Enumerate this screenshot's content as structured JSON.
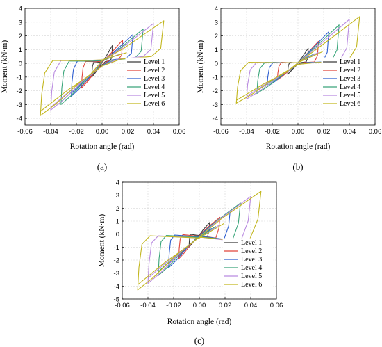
{
  "chart_data": [
    {
      "type": "line",
      "panel_label": "(a)",
      "xlabel": "Rotation angle (rad)",
      "ylabel": "Moment (kN·m)",
      "xlim": [
        -0.06,
        0.06
      ],
      "ylim": [
        -4.5,
        4
      ],
      "xticks": [
        "-0.06",
        "-0.04",
        "-0.02",
        "0.00",
        "0.02",
        "0.04",
        "0.06"
      ],
      "yticks": [
        "-4",
        "-3",
        "-2",
        "-1",
        "0",
        "1",
        "2",
        "3",
        "4"
      ],
      "grid": true,
      "legend_position": "lower-right",
      "series": [
        {
          "name": "Level 1",
          "color": "#3a3a3a",
          "amp_x": 0.008,
          "pos_peak": 1.3,
          "neg_peak": -1.0,
          "neg_end": -1.0,
          "pos_end": 0.2,
          "shape": "pinched"
        },
        {
          "name": "Level 2",
          "color": "#e0443a",
          "amp_x": 0.016,
          "pos_peak": 1.7,
          "neg_peak": -1.8,
          "neg_end": -1.7,
          "pos_end": 0.3,
          "shape": "pinched"
        },
        {
          "name": "Level 3",
          "color": "#2f5fd0",
          "amp_x": 0.024,
          "pos_peak": 2.1,
          "neg_peak": -2.4,
          "neg_end": -2.2,
          "pos_end": 0.4,
          "shape": "pinched"
        },
        {
          "name": "Level 4",
          "color": "#3aa57a",
          "amp_x": 0.032,
          "pos_peak": 2.5,
          "neg_peak": -3.0,
          "neg_end": -2.8,
          "pos_end": 0.4,
          "shape": "pinched"
        },
        {
          "name": "Level 5",
          "color": "#b98ae0",
          "amp_x": 0.04,
          "pos_peak": 2.9,
          "neg_peak": -3.4,
          "neg_end": -3.2,
          "pos_end": 0.5,
          "shape": "pinched"
        },
        {
          "name": "Level 6",
          "color": "#c2b61e",
          "amp_x": 0.048,
          "pos_peak": 3.1,
          "neg_peak": -3.8,
          "neg_end": -3.5,
          "pos_end": 0.5,
          "shape": "pinched"
        }
      ]
    },
    {
      "type": "line",
      "panel_label": "(b)",
      "xlabel": "Rotation angle (rad)",
      "ylabel": "Moment (kN·m)",
      "xlim": [
        -0.06,
        0.06
      ],
      "ylim": [
        -4.5,
        4
      ],
      "xticks": [
        "-0.06",
        "-0.04",
        "-0.02",
        "0.00",
        "0.02",
        "0.04",
        "0.06"
      ],
      "yticks": [
        "-4",
        "-3",
        "-2",
        "-1",
        "0",
        "1",
        "2",
        "3",
        "4"
      ],
      "grid": true,
      "legend_position": "lower-right",
      "series": [
        {
          "name": "Level 1",
          "color": "#3a3a3a",
          "amp_x": 0.008,
          "pos_peak": 1.1,
          "neg_peak": -0.8,
          "neg_end": -0.8,
          "pos_end": 0.1,
          "shape": "pinched"
        },
        {
          "name": "Level 2",
          "color": "#e0443a",
          "amp_x": 0.016,
          "pos_peak": 1.6,
          "neg_peak": -1.2,
          "neg_end": -1.1,
          "pos_end": 0.1,
          "shape": "pinched"
        },
        {
          "name": "Level 3",
          "color": "#2f5fd0",
          "amp_x": 0.024,
          "pos_peak": 2.3,
          "neg_peak": -1.7,
          "neg_end": -1.6,
          "pos_end": 0.1,
          "shape": "pinched"
        },
        {
          "name": "Level 4",
          "color": "#3aa57a",
          "amp_x": 0.032,
          "pos_peak": 2.8,
          "neg_peak": -2.2,
          "neg_end": -2.0,
          "pos_end": 0.1,
          "shape": "pinched"
        },
        {
          "name": "Level 5",
          "color": "#b98ae0",
          "amp_x": 0.04,
          "pos_peak": 3.2,
          "neg_peak": -2.6,
          "neg_end": -2.4,
          "pos_end": 0.1,
          "shape": "pinched"
        },
        {
          "name": "Level 6",
          "color": "#c2b61e",
          "amp_x": 0.048,
          "pos_peak": 3.4,
          "neg_peak": -2.9,
          "neg_end": -2.7,
          "pos_end": 0.1,
          "shape": "pinched"
        }
      ]
    },
    {
      "type": "line",
      "panel_label": "(c)",
      "xlabel": "Rotation angle (rad)",
      "ylabel": "Moment (kN·m)",
      "xlim": [
        -0.06,
        0.06
      ],
      "ylim": [
        -5,
        4
      ],
      "xticks": [
        "-0.06",
        "-0.04",
        "-0.02",
        "0.00",
        "0.02",
        "0.04",
        "0.06"
      ],
      "yticks": [
        "-5",
        "-4",
        "-3",
        "-2",
        "-1",
        "0",
        "1",
        "2",
        "3",
        "4"
      ],
      "grid": true,
      "legend_position": "lower-right",
      "series": [
        {
          "name": "Level 1",
          "color": "#3a3a3a",
          "amp_x": 0.008,
          "pos_peak": 0.9,
          "neg_peak": -1.0,
          "neg_end": -1.0,
          "pos_end": -0.2,
          "shape": "pinched"
        },
        {
          "name": "Level 2",
          "color": "#e0443a",
          "amp_x": 0.016,
          "pos_peak": 1.3,
          "neg_peak": -1.9,
          "neg_end": -1.7,
          "pos_end": -0.3,
          "shape": "pinched"
        },
        {
          "name": "Level 3",
          "color": "#2f5fd0",
          "amp_x": 0.024,
          "pos_peak": 1.8,
          "neg_peak": -2.6,
          "neg_end": -2.3,
          "pos_end": -0.4,
          "shape": "pinched"
        },
        {
          "name": "Level 4",
          "color": "#3aa57a",
          "amp_x": 0.032,
          "pos_peak": 2.4,
          "neg_peak": -3.2,
          "neg_end": -2.9,
          "pos_end": -0.5,
          "shape": "pinched"
        },
        {
          "name": "Level 5",
          "color": "#b98ae0",
          "amp_x": 0.04,
          "pos_peak": 2.9,
          "neg_peak": -3.8,
          "neg_end": -3.4,
          "pos_end": -0.6,
          "shape": "pinched"
        },
        {
          "name": "Level 6",
          "color": "#c2b61e",
          "amp_x": 0.048,
          "pos_peak": 3.3,
          "neg_peak": -4.3,
          "neg_end": -3.9,
          "pos_end": -0.6,
          "shape": "pinched"
        }
      ]
    }
  ]
}
